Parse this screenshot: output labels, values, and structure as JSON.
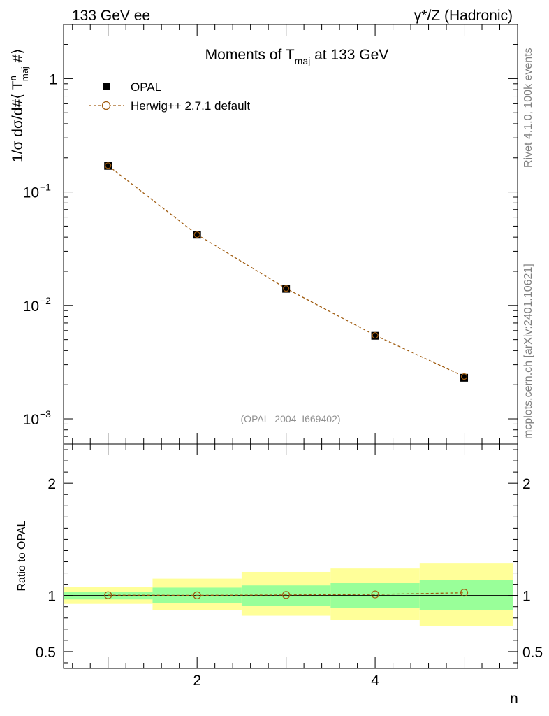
{
  "header": {
    "left_label": "133 GeV ee",
    "right_label": "γ*/Z (Hadronic)"
  },
  "side_text": {
    "rivet": "Rivet 4.1.0,  100k events",
    "source": "mcplots.cern.ch [arXiv:2401.10621]"
  },
  "chart_data": [
    {
      "type": "scatter",
      "title_main": "Moments of T",
      "title_sub": "maj",
      "title_tail": " at 133 GeV",
      "ylabel_parts": [
        "1/σ  dσ/d#⟨ T",
        "n",
        "maj",
        " #⟩"
      ],
      "xlabel": "n",
      "yscale": "log",
      "ylim": [
        0.0006,
        3
      ],
      "xlim": [
        0.5,
        5.6
      ],
      "y_ticks": [
        {
          "value": 1,
          "label": "1",
          "base": "",
          "exp": ""
        },
        {
          "value": 0.1,
          "label": "",
          "base": "10",
          "exp": "−1"
        },
        {
          "value": 0.01,
          "label": "",
          "base": "10",
          "exp": "−2"
        },
        {
          "value": 0.001,
          "label": "",
          "base": "10",
          "exp": "−3"
        }
      ],
      "watermark": "(OPAL_2004_I669402)",
      "legend": [
        {
          "name": "OPAL",
          "marker": "filled-square"
        },
        {
          "name": "Herwig++ 2.7.1 default",
          "marker": "open-circle-dashed"
        }
      ],
      "series": [
        {
          "name": "OPAL",
          "x": [
            1,
            2,
            3,
            4,
            5
          ],
          "y": [
            0.17,
            0.042,
            0.014,
            0.0054,
            0.0023
          ]
        },
        {
          "name": "Herwig++ 2.7.1 default",
          "x": [
            1,
            2,
            3,
            4,
            5
          ],
          "y": [
            0.171,
            0.0421,
            0.0141,
            0.00545,
            0.00236
          ]
        }
      ]
    },
    {
      "type": "line",
      "ylabel": "Ratio to OPAL",
      "xlabel": "n",
      "ylim": [
        0.35,
        2.35
      ],
      "xlim": [
        0.5,
        5.6
      ],
      "y_ticks": [
        0.5,
        1,
        2
      ],
      "y_tick_labels": [
        "0.5",
        "1",
        "2"
      ],
      "x_ticks": [
        2,
        4
      ],
      "x_tick_labels": [
        "2",
        "4"
      ],
      "bands": [
        {
          "x0": 0.5,
          "x1": 1.5,
          "green": [
            0.965,
            1.035
          ],
          "yellow": [
            0.925,
            1.075
          ]
        },
        {
          "x0": 1.5,
          "x1": 2.5,
          "green": [
            0.93,
            1.07
          ],
          "yellow": [
            0.87,
            1.15
          ]
        },
        {
          "x0": 2.5,
          "x1": 3.5,
          "green": [
            0.91,
            1.09
          ],
          "yellow": [
            0.82,
            1.21
          ]
        },
        {
          "x0": 3.5,
          "x1": 4.5,
          "green": [
            0.89,
            1.11
          ],
          "yellow": [
            0.78,
            1.24
          ]
        },
        {
          "x0": 4.5,
          "x1": 5.55,
          "green": [
            0.87,
            1.14
          ],
          "yellow": [
            0.73,
            1.29
          ]
        }
      ],
      "series": [
        {
          "name": "Herwig++ 2.7.1 default",
          "x": [
            1,
            2,
            3,
            4,
            5
          ],
          "y": [
            1.003,
            1.002,
            1.005,
            1.01,
            1.025
          ]
        }
      ]
    }
  ],
  "colors": {
    "mc": "#a05c10",
    "green_band": "#99ff99",
    "yellow_band": "#ffff99",
    "data": "#000000",
    "side_text": "#808080",
    "watermark": "#909090"
  }
}
